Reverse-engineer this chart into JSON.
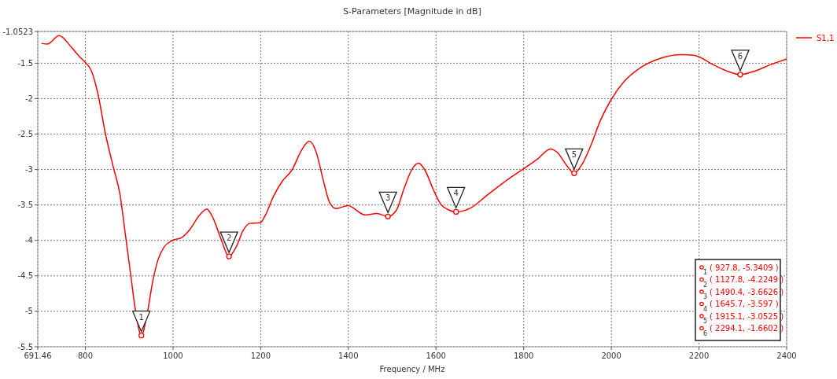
{
  "chart_data": {
    "type": "line",
    "title": "S-Parameters [Magnitude in dB]",
    "xlabel": "Frequency / MHz",
    "xlim": [
      691.46,
      2400
    ],
    "xticks": [
      691.46,
      800,
      1000,
      1200,
      1400,
      1600,
      1800,
      2000,
      2200,
      2400
    ],
    "ylim": [
      -5.5,
      -1.0523
    ],
    "yticks": [
      -1.0523,
      -1.5,
      -2,
      -2.5,
      -3,
      -3.5,
      -4,
      -4.5,
      -5,
      -5.5
    ],
    "grid": true,
    "legend": "top right",
    "line_style": "solid",
    "series": [
      {
        "name": "S1,1",
        "color": "#ff0000",
        "marker": "none",
        "x": [
          700,
          714,
          740,
          769,
          787,
          800,
          814,
          829,
          846,
          864,
          879,
          891,
          903,
          915,
          927.8,
          942,
          954,
          966,
          980,
          999,
          1020,
          1038,
          1061,
          1077,
          1091,
          1109,
          1127.8,
          1145,
          1160,
          1175,
          1199,
          1211,
          1229,
          1250,
          1271,
          1294,
          1311,
          1327,
          1342,
          1357,
          1372,
          1399,
          1438,
          1465,
          1490.4,
          1510,
          1527,
          1545,
          1560,
          1575,
          1593,
          1611,
          1629,
          1645.7,
          1677,
          1719,
          1766,
          1802,
          1832,
          1861,
          1877,
          1898,
          1915.1,
          1934,
          1952,
          1975,
          1999,
          2029,
          2065,
          2113,
          2161,
          2190,
          2232,
          2268,
          2294.1,
          2328,
          2364,
          2400
        ],
        "values": [
          -1.22,
          -1.23,
          -1.11,
          -1.28,
          -1.41,
          -1.49,
          -1.61,
          -1.94,
          -2.5,
          -2.97,
          -3.35,
          -3.9,
          -4.46,
          -5.01,
          -5.3409,
          -5.0,
          -4.57,
          -4.27,
          -4.09,
          -4.0,
          -3.96,
          -3.85,
          -3.64,
          -3.56,
          -3.68,
          -3.97,
          -4.2249,
          -4.08,
          -3.86,
          -3.76,
          -3.75,
          -3.64,
          -3.38,
          -3.16,
          -3.01,
          -2.72,
          -2.6,
          -2.76,
          -3.13,
          -3.46,
          -3.55,
          -3.51,
          -3.64,
          -3.62,
          -3.6626,
          -3.57,
          -3.27,
          -3.0,
          -2.91,
          -3.01,
          -3.27,
          -3.49,
          -3.57,
          -3.597,
          -3.55,
          -3.35,
          -3.13,
          -2.98,
          -2.85,
          -2.71,
          -2.76,
          -2.94,
          -3.0525,
          -2.92,
          -2.68,
          -2.31,
          -2.02,
          -1.76,
          -1.57,
          -1.43,
          -1.38,
          -1.39,
          -1.52,
          -1.62,
          -1.6602,
          -1.61,
          -1.52,
          -1.44
        ]
      },
      {
        "type": "scatter",
        "color": "#ff0000",
        "marker": "circle",
        "x": [
          927.8,
          1127.8,
          1490.4,
          1645.7,
          1915.1,
          2294.1
        ],
        "values": [
          -5.3409,
          -4.2249,
          -3.6626,
          -3.597,
          -3.0525,
          -1.6602
        ]
      }
    ],
    "annotations": [
      {
        "text": "1",
        "x": 927.8,
        "y": -5.3409
      },
      {
        "text": "2",
        "x": 1127.8,
        "y": -4.2249
      },
      {
        "text": "3",
        "x": 1490.4,
        "y": -3.6626
      },
      {
        "text": "4",
        "x": 1645.7,
        "y": -3.597
      },
      {
        "text": "5",
        "x": 1915.1,
        "y": -3.0525
      },
      {
        "text": "6",
        "x": 2294.1,
        "y": -1.6602
      },
      "( 927.8, -5.3409 )",
      "( 1127.8, -4.2249 )",
      "( 1490.4, -3.6626 )",
      "( 1645.7, -3.597 )",
      "( 1915.1, -3.0525 )",
      "( 2294.1, -1.6602 )"
    ]
  }
}
